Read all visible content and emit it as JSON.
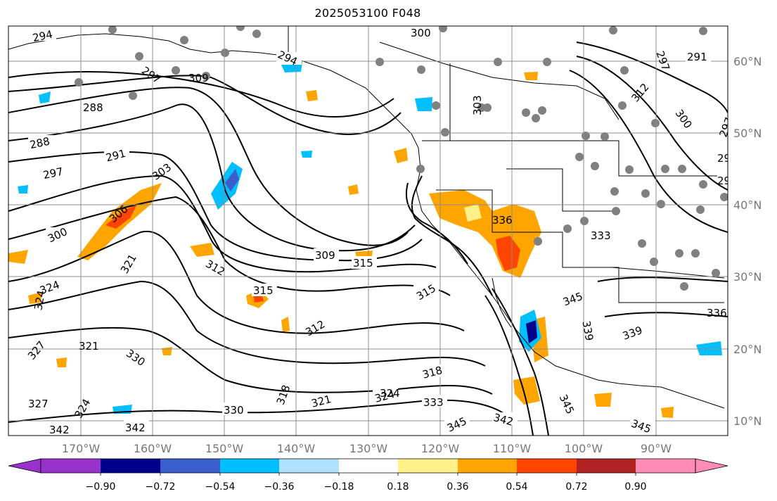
{
  "title": "2025053100 F048",
  "latitude_labels": [
    "60°N",
    "50°N",
    "40°N",
    "30°N",
    "20°N",
    "10°N"
  ],
  "longitude_labels": [
    "170°W",
    "160°W",
    "150°W",
    "140°W",
    "130°W",
    "120°W",
    "110°W",
    "100°W",
    "90°W"
  ],
  "colorbar": {
    "tick_labels": [
      "−0.90",
      "−0.72",
      "−0.54",
      "−0.36",
      "−0.18",
      "0.18",
      "0.36",
      "0.54",
      "0.72",
      "0.90"
    ],
    "colors": [
      "#9932cc",
      "#00008b",
      "#3a5fcd",
      "#00bfff",
      "#b0e2ff",
      "#ffffff",
      "#fff08a",
      "#ffa500",
      "#ff4500",
      "#b22222",
      "#ff8cb4"
    ]
  },
  "contour_labels": [
    "294",
    "300",
    "294",
    "291",
    "297",
    "297",
    "288",
    "291",
    "288",
    "297",
    "303",
    "300",
    "306",
    "309",
    "315",
    "312",
    "315",
    "312",
    "321",
    "324",
    "327",
    "324",
    "321",
    "330",
    "327",
    "324",
    "342",
    "342",
    "330",
    "318",
    "321",
    "324",
    "333",
    "318",
    "315",
    "345",
    "342",
    "345",
    "345",
    "339",
    "336",
    "303",
    "309",
    "312",
    "300",
    "297",
    "291",
    "291",
    "333",
    "324",
    "336",
    "345",
    "339"
  ],
  "stations": "gray-dots",
  "colors": {
    "coast": "#000000",
    "grid": "#8c8c8c",
    "station": "#808080",
    "contour": "#000000"
  }
}
